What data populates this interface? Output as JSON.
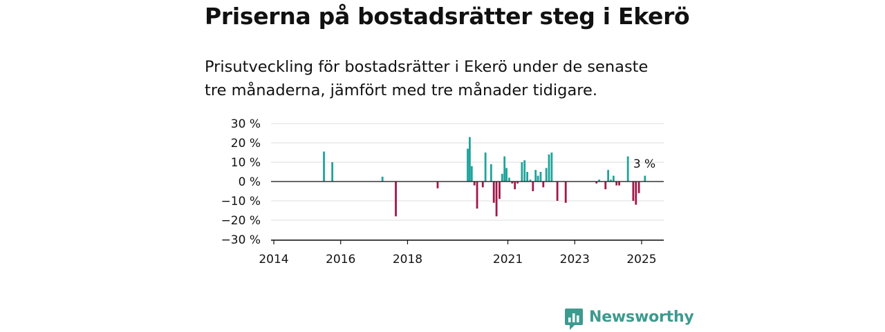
{
  "title": "Priserna på bostadsrätter steg i Ekerö",
  "subtitle_line1": "Prisutveckling för bostadsrätter i Ekerö under de senaste",
  "subtitle_line2": "tre månaderna, jämfört med tre månader tidigare.",
  "brand": {
    "name": "Newsworthy",
    "color": "#3d9a8f"
  },
  "colors": {
    "positive": "#1fa39a",
    "negative": "#a0174a",
    "grid": "#dddddd",
    "zero_line": "#333333"
  },
  "chart_data": {
    "type": "bar",
    "x_unit": "year",
    "xlim": [
      2014,
      2025.6
    ],
    "ylim": [
      -30,
      30
    ],
    "yticks": [
      30,
      20,
      10,
      0,
      -10,
      -20,
      -30
    ],
    "ytick_labels": [
      "30 %",
      "20 %",
      "10 %",
      "0 %",
      "−10 %",
      "−20 %",
      "−30 %"
    ],
    "xticks": [
      2014,
      2016,
      2018,
      2021,
      2023,
      2025
    ],
    "xtick_labels": [
      "2014",
      "2016",
      "2018",
      "2021",
      "2023",
      "2025"
    ],
    "grid": true,
    "annotation": {
      "text": "3 %",
      "x": 2025.1,
      "y": 3
    },
    "points": [
      {
        "x": 2015.5,
        "y": 15.5
      },
      {
        "x": 2015.75,
        "y": 10
      },
      {
        "x": 2017.25,
        "y": 2.5
      },
      {
        "x": 2017.65,
        "y": -18
      },
      {
        "x": 2018.9,
        "y": -3.5
      },
      {
        "x": 2019.8,
        "y": 17
      },
      {
        "x": 2019.86,
        "y": 23
      },
      {
        "x": 2019.92,
        "y": 8
      },
      {
        "x": 2020.0,
        "y": -2
      },
      {
        "x": 2020.08,
        "y": -14
      },
      {
        "x": 2020.25,
        "y": -3
      },
      {
        "x": 2020.33,
        "y": 15
      },
      {
        "x": 2020.5,
        "y": 9
      },
      {
        "x": 2020.58,
        "y": -11
      },
      {
        "x": 2020.66,
        "y": -18
      },
      {
        "x": 2020.75,
        "y": -9
      },
      {
        "x": 2020.83,
        "y": 4
      },
      {
        "x": 2020.9,
        "y": 13
      },
      {
        "x": 2020.96,
        "y": 7
      },
      {
        "x": 2021.04,
        "y": 2
      },
      {
        "x": 2021.13,
        "y": -1
      },
      {
        "x": 2021.21,
        "y": -4
      },
      {
        "x": 2021.29,
        "y": -1
      },
      {
        "x": 2021.42,
        "y": 10
      },
      {
        "x": 2021.5,
        "y": 11
      },
      {
        "x": 2021.58,
        "y": 5
      },
      {
        "x": 2021.67,
        "y": 1
      },
      {
        "x": 2021.75,
        "y": -5
      },
      {
        "x": 2021.83,
        "y": 6
      },
      {
        "x": 2021.9,
        "y": 3
      },
      {
        "x": 2021.98,
        "y": 5
      },
      {
        "x": 2022.06,
        "y": -3
      },
      {
        "x": 2022.15,
        "y": 7
      },
      {
        "x": 2022.23,
        "y": 14
      },
      {
        "x": 2022.31,
        "y": 15
      },
      {
        "x": 2022.48,
        "y": -10
      },
      {
        "x": 2022.73,
        "y": -11
      },
      {
        "x": 2023.65,
        "y": -1
      },
      {
        "x": 2023.73,
        "y": 1
      },
      {
        "x": 2023.92,
        "y": -4
      },
      {
        "x": 2024.0,
        "y": 6
      },
      {
        "x": 2024.08,
        "y": 1
      },
      {
        "x": 2024.16,
        "y": 3
      },
      {
        "x": 2024.25,
        "y": -2
      },
      {
        "x": 2024.33,
        "y": -2
      },
      {
        "x": 2024.59,
        "y": 13
      },
      {
        "x": 2024.75,
        "y": -10
      },
      {
        "x": 2024.83,
        "y": -12
      },
      {
        "x": 2024.92,
        "y": -6
      },
      {
        "x": 2025.1,
        "y": 3
      }
    ]
  }
}
